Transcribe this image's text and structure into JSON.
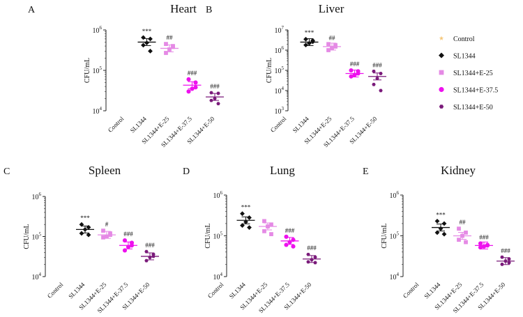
{
  "legend": [
    {
      "label": "Control",
      "color": "#f5c77a",
      "marker": "star"
    },
    {
      "label": "SL1344",
      "color": "#111111",
      "marker": "diamond"
    },
    {
      "label": "SL1344+E-25",
      "color": "#e58ae5",
      "marker": "square"
    },
    {
      "label": "SL1344+E-37.5",
      "color": "#ee11ee",
      "marker": "circle"
    },
    {
      "label": "SL1344+E-50",
      "color": "#7a1a7a",
      "marker": "hexagon"
    }
  ],
  "chart_data": [
    {
      "type": "scatter",
      "panel": "A",
      "title": "Heart",
      "ylabel": "CFU/mL",
      "yscale": "log",
      "ylim": [
        10000,
        1000000
      ],
      "yticks": [
        {
          "base": "10",
          "exp": "4"
        },
        {
          "base": "10",
          "exp": "5"
        },
        {
          "base": "10",
          "exp": "6"
        }
      ],
      "categories": [
        "Control",
        "SL1344",
        "SL1344+E-25",
        "SL1344+E-37.5",
        "SL1344+E-50"
      ],
      "means": [
        null,
        500000,
        350000,
        43000,
        22000
      ],
      "points": [
        [],
        [
          650000,
          600000,
          480000,
          420000,
          300000
        ],
        [
          450000,
          380000,
          330000,
          270000,
          400000
        ],
        [
          60000,
          50000,
          35000,
          30000,
          38000
        ],
        [
          28000,
          27000,
          20000,
          18000,
          15000
        ]
      ],
      "significance": [
        "",
        "***",
        "##",
        "###",
        "###"
      ]
    },
    {
      "type": "scatter",
      "panel": "B",
      "title": "Liver",
      "ylabel": "CFU/mL",
      "yscale": "log",
      "ylim": [
        1000,
        10000000
      ],
      "yticks": [
        {
          "base": "10",
          "exp": "3"
        },
        {
          "base": "10",
          "exp": "4"
        },
        {
          "base": "10",
          "exp": "5"
        },
        {
          "base": "10",
          "exp": "6"
        },
        {
          "base": "10",
          "exp": "7"
        }
      ],
      "categories": [
        "Control",
        "SL1344",
        "SL1344+E-25",
        "SL1344+E-37.5",
        "SL1344+E-50"
      ],
      "means": [
        null,
        2500000,
        1500000,
        70000,
        50000
      ],
      "points": [
        [],
        [
          3500000,
          3000000,
          2200000,
          1800000,
          2600000
        ],
        [
          2000000,
          1800000,
          1300000,
          1000000,
          1500000
        ],
        [
          100000,
          90000,
          60000,
          50000,
          70000
        ],
        [
          90000,
          70000,
          40000,
          20000,
          10000
        ]
      ],
      "significance": [
        "",
        "***",
        "##",
        "###",
        "###"
      ]
    },
    {
      "type": "scatter",
      "panel": "C",
      "title": "Spleen",
      "ylabel": "CFU/mL",
      "yscale": "log",
      "ylim": [
        10000,
        1000000
      ],
      "yticks": [
        {
          "base": "10",
          "exp": "4"
        },
        {
          "base": "10",
          "exp": "5"
        },
        {
          "base": "10",
          "exp": "6"
        }
      ],
      "categories": [
        "Control",
        "SL1344",
        "SL1344+E-25",
        "SL1344+E-37.5",
        "SL1344+E-50"
      ],
      "means": [
        null,
        150000,
        110000,
        60000,
        32000
      ],
      "points": [
        [],
        [
          200000,
          170000,
          150000,
          120000,
          110000
        ],
        [
          140000,
          120000,
          100000,
          95000,
          110000
        ],
        [
          80000,
          70000,
          55000,
          45000,
          60000
        ],
        [
          42000,
          36000,
          30000,
          25000,
          32000
        ]
      ],
      "significance": [
        "",
        "***",
        "#",
        "###",
        "###"
      ]
    },
    {
      "type": "scatter",
      "panel": "D",
      "title": "Lung",
      "ylabel": "CFU/mL",
      "yscale": "log",
      "ylim": [
        10000,
        1000000
      ],
      "yticks": [
        {
          "base": "10",
          "exp": "4"
        },
        {
          "base": "10",
          "exp": "5"
        },
        {
          "base": "10",
          "exp": "6"
        }
      ],
      "categories": [
        "Control",
        "SL1344",
        "SL1344+E-25",
        "SL1344+E-37.5",
        "SL1344+E-50"
      ],
      "means": [
        null,
        240000,
        170000,
        75000,
        27000
      ],
      "points": [
        [],
        [
          350000,
          280000,
          220000,
          180000,
          160000
        ],
        [
          230000,
          190000,
          170000,
          130000,
          110000
        ],
        [
          95000,
          80000,
          70000,
          60000,
          55000
        ],
        [
          35000,
          30000,
          26000,
          23000,
          22000
        ]
      ],
      "significance": [
        "",
        "***",
        "",
        "###",
        "###"
      ]
    },
    {
      "type": "scatter",
      "panel": "E",
      "title": "Kidney",
      "ylabel": "CFU/mL",
      "yscale": "log",
      "ylim": [
        10000,
        1000000
      ],
      "yticks": [
        {
          "base": "10",
          "exp": "4"
        },
        {
          "base": "10",
          "exp": "5"
        },
        {
          "base": "10",
          "exp": "6"
        }
      ],
      "categories": [
        "Control",
        "SL1344",
        "SL1344+E-25",
        "SL1344+E-37.5",
        "SL1344+E-50"
      ],
      "means": [
        null,
        160000,
        100000,
        58000,
        24000
      ],
      "points": [
        [],
        [
          230000,
          200000,
          150000,
          120000,
          110000
        ],
        [
          150000,
          120000,
          100000,
          80000,
          70000
        ],
        [
          65000,
          60000,
          55000,
          52000,
          58000
        ],
        [
          30000,
          27000,
          24000,
          20000,
          22000
        ]
      ],
      "significance": [
        "",
        "***",
        "##",
        "###",
        "###"
      ]
    }
  ]
}
